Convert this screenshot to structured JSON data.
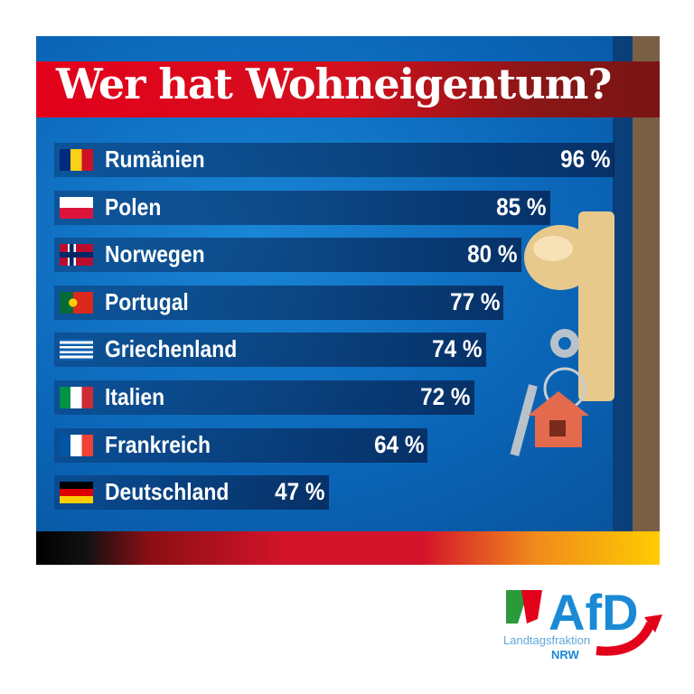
{
  "chart_data": {
    "type": "bar",
    "orientation": "horizontal",
    "title": "Wer hat Wohneigentum?",
    "unit": "%",
    "categories": [
      "Rumänien",
      "Polen",
      "Norwegen",
      "Portugal",
      "Griechenland",
      "Italien",
      "Frankreich",
      "Deutschland"
    ],
    "values": [
      96,
      85,
      80,
      77,
      74,
      72,
      64,
      47
    ],
    "value_labels": [
      "96 %",
      "85 %",
      "80 %",
      "77 %",
      "74 %",
      "72 %",
      "64 %",
      "47 %"
    ],
    "flags": [
      "romania-flag",
      "poland-flag",
      "norway-flag",
      "portugal-flag",
      "greece-flag",
      "italy-flag",
      "france-flag",
      "germany-flag"
    ],
    "colors": {
      "background": "#0b66b8",
      "title_band": "#e3001b",
      "bar": "#083c7a"
    }
  },
  "logo": {
    "name": "AfD",
    "line1": "Landtagsfraktion",
    "line2": "NRW"
  }
}
